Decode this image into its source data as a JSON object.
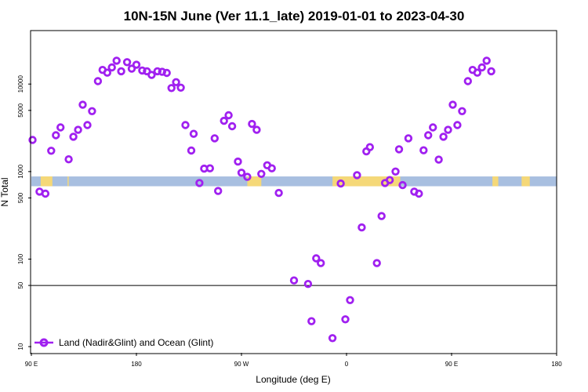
{
  "chart_data": {
    "type": "scatter",
    "title": "10N-15N June (Ver 11.1_late)   2019-01-01 to 2023-04-30",
    "xlabel": "Longitude (deg E)",
    "ylabel": "N Total",
    "xscale": "linear",
    "yscale": "log",
    "xlim": [
      90,
      540
    ],
    "ylim": [
      8.5,
      40000
    ],
    "xticks": [
      {
        "value": 90,
        "label": "90 E"
      },
      {
        "value": 180,
        "label": "180"
      },
      {
        "value": 270,
        "label": "90 W"
      },
      {
        "value": 360,
        "label": "0"
      },
      {
        "value": 450,
        "label": "90 E"
      },
      {
        "value": 540,
        "label": "180"
      }
    ],
    "yticks": [
      {
        "value": 10,
        "label": "10"
      },
      {
        "value": 50,
        "label": "50"
      },
      {
        "value": 100,
        "label": "100"
      },
      {
        "value": 500,
        "label": "500"
      },
      {
        "value": 1000,
        "label": "1000"
      },
      {
        "value": 5000,
        "label": "5000"
      },
      {
        "value": 10000,
        "label": "10000"
      }
    ],
    "reference_line": 50,
    "map_strip": {
      "y_from": 680,
      "y_to": 880,
      "ocean_color": "#a8bfe0",
      "land_color": "#f5d878"
    },
    "land_segments": [
      [
        98,
        108
      ],
      [
        121,
        122
      ],
      [
        275,
        287
      ],
      [
        348,
        406
      ],
      [
        485,
        490
      ],
      [
        510,
        517
      ]
    ],
    "marker_color": "#a020f0",
    "series": [
      {
        "name": "Land (Nadir&Glint) and Ocean (Glint)",
        "points": [
          [
            91,
            2300
          ],
          [
            97,
            590
          ],
          [
            102,
            560
          ],
          [
            107,
            1730
          ],
          [
            111,
            2600
          ],
          [
            115,
            3200
          ],
          [
            122,
            1380
          ],
          [
            126,
            2500
          ],
          [
            130,
            3000
          ],
          [
            134,
            5800
          ],
          [
            138,
            3400
          ],
          [
            142,
            4900
          ],
          [
            147,
            10800
          ],
          [
            151,
            14500
          ],
          [
            155,
            13500
          ],
          [
            159,
            15500
          ],
          [
            163,
            18500
          ],
          [
            167,
            14000
          ],
          [
            172,
            17800
          ],
          [
            176,
            15000
          ],
          [
            180,
            16600
          ],
          [
            185,
            14300
          ],
          [
            189,
            14000
          ],
          [
            193,
            12700
          ],
          [
            198,
            14000
          ],
          [
            202,
            13800
          ],
          [
            206,
            13400
          ],
          [
            210,
            9000
          ],
          [
            214,
            10500
          ],
          [
            218,
            9100
          ],
          [
            222,
            3400
          ],
          [
            227,
            1740
          ],
          [
            229,
            2700
          ],
          [
            234,
            740
          ],
          [
            238,
            1080
          ],
          [
            243,
            1090
          ],
          [
            247,
            2400
          ],
          [
            250,
            600
          ],
          [
            255,
            3800
          ],
          [
            259,
            4400
          ],
          [
            262,
            3300
          ],
          [
            267,
            1300
          ],
          [
            270,
            970
          ],
          [
            275,
            870
          ],
          [
            279,
            3500
          ],
          [
            283,
            3000
          ],
          [
            287,
            940
          ],
          [
            292,
            1180
          ],
          [
            296,
            1090
          ],
          [
            302,
            570
          ],
          [
            315,
            57
          ],
          [
            327,
            52
          ],
          [
            330,
            19.5
          ],
          [
            334,
            102
          ],
          [
            338,
            90
          ],
          [
            348,
            12.5
          ],
          [
            355,
            730
          ],
          [
            359,
            20.5
          ],
          [
            363,
            34
          ],
          [
            369,
            910
          ],
          [
            373,
            230
          ],
          [
            377,
            1700
          ],
          [
            380,
            1900
          ],
          [
            386,
            90
          ],
          [
            390,
            310
          ],
          [
            393,
            740
          ],
          [
            397,
            800
          ],
          [
            402,
            1000
          ],
          [
            405,
            1800
          ],
          [
            408,
            700
          ],
          [
            413,
            2400
          ],
          [
            418,
            590
          ],
          [
            422,
            560
          ],
          [
            426,
            1750
          ],
          [
            430,
            2600
          ],
          [
            434,
            3200
          ],
          [
            439,
            1370
          ],
          [
            443,
            2500
          ],
          [
            447,
            3000
          ],
          [
            451,
            5800
          ],
          [
            455,
            3400
          ],
          [
            459,
            4900
          ],
          [
            464,
            10800
          ],
          [
            468,
            14500
          ],
          [
            472,
            13500
          ],
          [
            476,
            15500
          ],
          [
            480,
            18500
          ],
          [
            484,
            14000
          ]
        ]
      }
    ],
    "legend": {
      "position": "bottom-left",
      "entries": [
        "Land (Nadir&Glint) and Ocean (Glint)"
      ]
    }
  }
}
